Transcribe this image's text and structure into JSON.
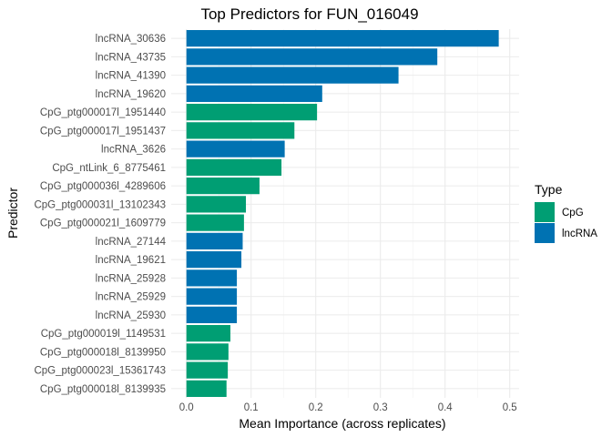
{
  "chart_data": {
    "type": "bar",
    "orientation": "horizontal",
    "title": "Top Predictors for FUN_016049",
    "xlabel": "Mean Importance (across replicates)",
    "ylabel": "Predictor",
    "xlim": [
      0,
      0.52
    ],
    "xticks": [
      0.0,
      0.1,
      0.2,
      0.3,
      0.4,
      0.5
    ],
    "xtick_labels": [
      "0.0",
      "0.1",
      "0.2",
      "0.3",
      "0.4",
      "0.5"
    ],
    "grid": true,
    "legend": {
      "title": "Type",
      "placement": "right",
      "entries": [
        {
          "label": "CpG",
          "color": "#009E73"
        },
        {
          "label": "lncRNA",
          "color": "#0072B2"
        }
      ]
    },
    "bars": [
      {
        "label": "lncRNA_30636",
        "value": 0.483,
        "type": "lncRNA"
      },
      {
        "label": "lncRNA_43735",
        "value": 0.388,
        "type": "lncRNA"
      },
      {
        "label": "lncRNA_41390",
        "value": 0.328,
        "type": "lncRNA"
      },
      {
        "label": "lncRNA_19620",
        "value": 0.21,
        "type": "lncRNA"
      },
      {
        "label": "CpG_ptg000017l_1951440",
        "value": 0.202,
        "type": "CpG"
      },
      {
        "label": "CpG_ptg000017l_1951437",
        "value": 0.167,
        "type": "CpG"
      },
      {
        "label": "lncRNA_3626",
        "value": 0.152,
        "type": "lncRNA"
      },
      {
        "label": "CpG_ntLink_6_8775461",
        "value": 0.147,
        "type": "CpG"
      },
      {
        "label": "CpG_ptg000036l_4289606",
        "value": 0.113,
        "type": "CpG"
      },
      {
        "label": "CpG_ptg000031l_13102343",
        "value": 0.092,
        "type": "CpG"
      },
      {
        "label": "CpG_ptg000021l_1609779",
        "value": 0.089,
        "type": "CpG"
      },
      {
        "label": "lncRNA_27144",
        "value": 0.087,
        "type": "lncRNA"
      },
      {
        "label": "lncRNA_19621",
        "value": 0.085,
        "type": "lncRNA"
      },
      {
        "label": "lncRNA_25928",
        "value": 0.078,
        "type": "lncRNA"
      },
      {
        "label": "lncRNA_25929",
        "value": 0.078,
        "type": "lncRNA"
      },
      {
        "label": "lncRNA_25930",
        "value": 0.078,
        "type": "lncRNA"
      },
      {
        "label": "CpG_ptg000019l_1149531",
        "value": 0.068,
        "type": "CpG"
      },
      {
        "label": "CpG_ptg000018l_8139950",
        "value": 0.065,
        "type": "CpG"
      },
      {
        "label": "CpG_ptg000023l_15361743",
        "value": 0.064,
        "type": "CpG"
      },
      {
        "label": "CpG_ptg000018l_8139935",
        "value": 0.062,
        "type": "CpG"
      }
    ]
  }
}
